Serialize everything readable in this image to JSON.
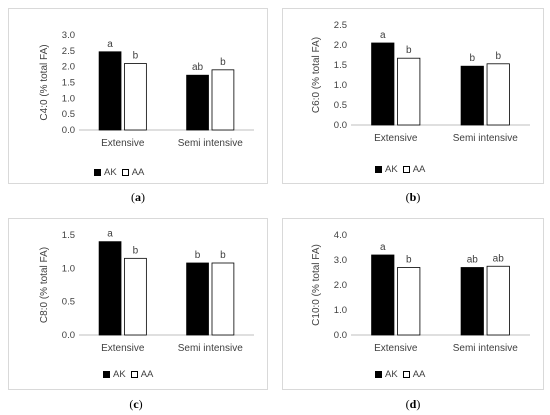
{
  "chart_data": [
    {
      "type": "bar",
      "ylabel": "C4:0 (% total FA)",
      "categories": [
        "Extensive",
        "Semi intensive"
      ],
      "yticks": [
        "0.0",
        "0.5",
        "1.0",
        "1.5",
        "2.0",
        "2.5",
        "3.0"
      ],
      "ylim": [
        0,
        3.0
      ],
      "series": [
        {
          "name": "AK",
          "values": [
            2.47,
            1.73
          ],
          "letters": [
            "a",
            "ab"
          ]
        },
        {
          "name": "AA",
          "values": [
            2.1,
            1.9
          ],
          "letters": [
            "b",
            "b"
          ]
        }
      ],
      "caption": "a",
      "legend": "bottom"
    },
    {
      "type": "bar",
      "ylabel": "C6:0 (% total FA)",
      "categories": [
        "Extensive",
        "Semi intensive"
      ],
      "yticks": [
        "0.0",
        "0.5",
        "1.0",
        "1.5",
        "2.0",
        "2.5"
      ],
      "ylim": [
        0,
        2.5
      ],
      "series": [
        {
          "name": "AK",
          "values": [
            2.05,
            1.47
          ],
          "letters": [
            "a",
            "b"
          ]
        },
        {
          "name": "AA",
          "values": [
            1.67,
            1.53
          ],
          "letters": [
            "b",
            "b"
          ]
        }
      ],
      "caption": "b",
      "legend": "bottom"
    },
    {
      "type": "bar",
      "ylabel": "C8:0 (% total FA)",
      "categories": [
        "Extensive",
        "Semi intensive"
      ],
      "yticks": [
        "0.0",
        "0.5",
        "1.0",
        "1.5"
      ],
      "ylim": [
        0,
        1.5
      ],
      "series": [
        {
          "name": "AK",
          "values": [
            1.4,
            1.08
          ],
          "letters": [
            "a",
            "b"
          ]
        },
        {
          "name": "AA",
          "values": [
            1.15,
            1.08
          ],
          "letters": [
            "b",
            "b"
          ]
        }
      ],
      "caption": "c",
      "legend": "bottom"
    },
    {
      "type": "bar",
      "ylabel": "C10:0 (% total FA)",
      "categories": [
        "Extensive",
        "Semi intensive"
      ],
      "yticks": [
        "0.0",
        "1.0",
        "2.0",
        "3.0",
        "4.0"
      ],
      "ylim": [
        0,
        4.0
      ],
      "series": [
        {
          "name": "AK",
          "values": [
            3.2,
            2.7
          ],
          "letters": [
            "a",
            "ab"
          ]
        },
        {
          "name": "AA",
          "values": [
            2.7,
            2.75
          ],
          "letters": [
            "b",
            "ab"
          ]
        }
      ],
      "caption": "d",
      "legend": "bottom"
    }
  ],
  "colors": {
    "AK": "#000000",
    "AA": "#ffffff",
    "axis": "#bfbfbf",
    "text": "#404040"
  }
}
